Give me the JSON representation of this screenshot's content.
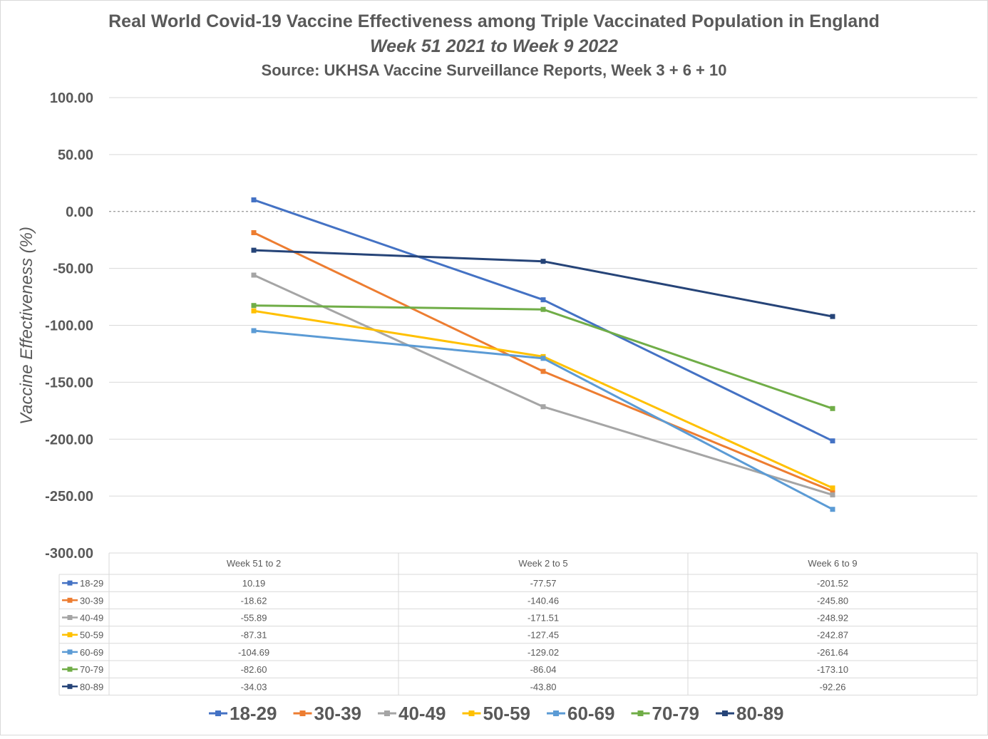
{
  "chart_data": {
    "type": "line",
    "title": "Real World Covid-19 Vaccine Effectiveness among Triple Vaccinated Population in England",
    "subtitle": "Week 51 2021 to Week 9 2022",
    "source": "Source: UKHSA Vaccine Surveillance Reports, Week 3 + 6 + 10",
    "ylabel": "Vaccine Effectiveness (%)",
    "xlabel": "",
    "ylim": [
      -300,
      100
    ],
    "yticks": [
      "100.00",
      "50.00",
      "0.00",
      "-50.00",
      "-100.00",
      "-150.00",
      "-200.00",
      "-250.00",
      "-300.00"
    ],
    "categories": [
      "Week 51 to 2",
      "Week 2 to 5",
      "Week 6 to 9"
    ],
    "grid": true,
    "legend_position": "bottom",
    "data_table": true,
    "series": [
      {
        "name": "18-29",
        "color": "#4472C4",
        "values": [
          10.19,
          -77.57,
          -201.52
        ],
        "labels": [
          "10.19",
          "-77.57",
          "-201.52"
        ]
      },
      {
        "name": "30-39",
        "color": "#ED7D31",
        "values": [
          -18.62,
          -140.46,
          -245.8
        ],
        "labels": [
          "-18.62",
          "-140.46",
          "-245.80"
        ]
      },
      {
        "name": "40-49",
        "color": "#A5A5A5",
        "values": [
          -55.89,
          -171.51,
          -248.92
        ],
        "labels": [
          "-55.89",
          "-171.51",
          "-248.92"
        ]
      },
      {
        "name": "50-59",
        "color": "#FFC000",
        "values": [
          -87.31,
          -127.45,
          -242.87
        ],
        "labels": [
          "-87.31",
          "-127.45",
          "-242.87"
        ]
      },
      {
        "name": "60-69",
        "color": "#5B9BD5",
        "values": [
          -104.69,
          -129.02,
          -261.64
        ],
        "labels": [
          "-104.69",
          "-129.02",
          "-261.64"
        ]
      },
      {
        "name": "70-79",
        "color": "#70AD47",
        "values": [
          -82.6,
          -86.04,
          -173.1
        ],
        "labels": [
          "-82.60",
          "-86.04",
          "-173.10"
        ]
      },
      {
        "name": "80-89",
        "color": "#264478",
        "values": [
          -34.03,
          -43.8,
          -92.26
        ],
        "labels": [
          "-34.03",
          "-43.80",
          "-92.26"
        ]
      }
    ]
  }
}
